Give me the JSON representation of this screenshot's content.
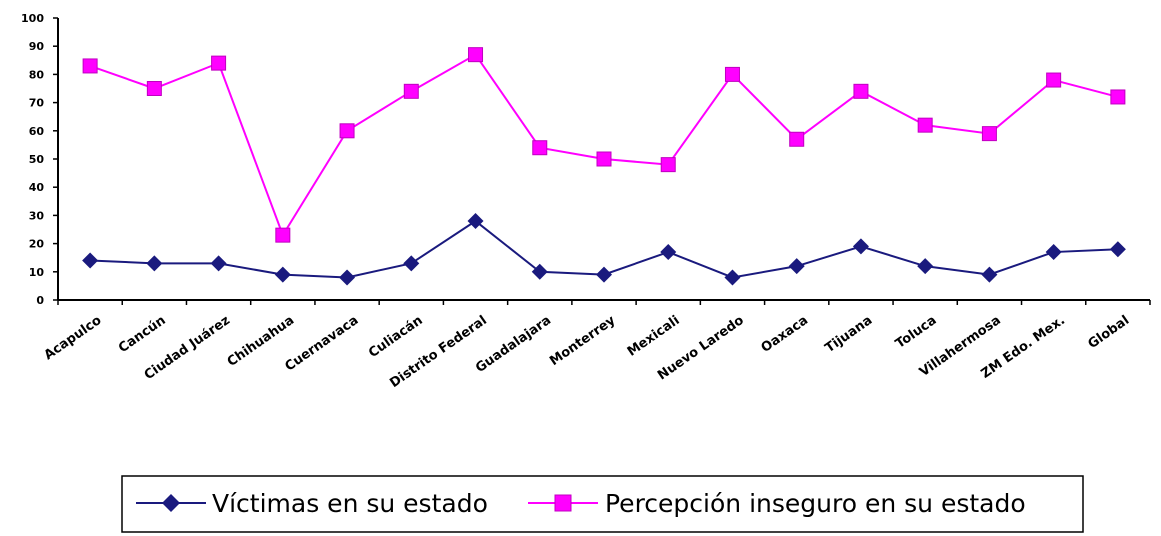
{
  "chart_data": {
    "type": "line",
    "title": "",
    "xlabel": "",
    "ylabel": "",
    "ylim": [
      0,
      100
    ],
    "y_ticks": [
      0,
      10,
      20,
      30,
      40,
      50,
      60,
      70,
      80,
      90,
      100
    ],
    "grid": false,
    "legend_position": "bottom",
    "categories": [
      "Acapulco",
      "Cancún",
      "Ciudad Juárez",
      "Chihuahua",
      "Cuernavaca",
      "Culiacán",
      "Distrito Federal",
      "Guadalajara",
      "Monterrey",
      "Mexicali",
      "Nuevo Laredo",
      "Oaxaca",
      "Tijuana",
      "Toluca",
      "Villahermosa",
      "ZM Edo. Mex.",
      "Global"
    ],
    "series": [
      {
        "name": "Víctimas en su estado",
        "color": "#1a1a7e",
        "marker": "diamond",
        "values": [
          14,
          13,
          13,
          9,
          8,
          13,
          28,
          10,
          9,
          17,
          8,
          12,
          19,
          12,
          9,
          17,
          18
        ]
      },
      {
        "name": "Percepción inseguro en su estado",
        "color": "#ff00ff",
        "marker": "square",
        "values": [
          83,
          75,
          84,
          23,
          60,
          74,
          87,
          54,
          50,
          48,
          80,
          57,
          74,
          62,
          59,
          78,
          72
        ]
      }
    ]
  }
}
